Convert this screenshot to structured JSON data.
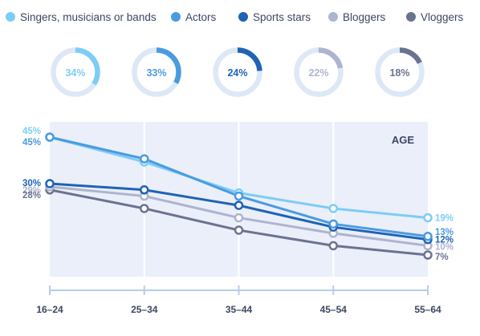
{
  "colors": {
    "singers": "#7ccdf5",
    "actors": "#4a9be0",
    "sports": "#1f63b5",
    "bloggers": "#aeb4cf",
    "vloggers": "#6b7390",
    "ring_track": "#dde8f6",
    "plot_bg": "#eaeffa",
    "axis": "#b9cce8",
    "text_dark": "#3b4760"
  },
  "legend": [
    {
      "label": "Singers, musicians or bands",
      "color_key": "singers"
    },
    {
      "label": "Actors",
      "color_key": "actors"
    },
    {
      "label": "Sports stars",
      "color_key": "sports"
    },
    {
      "label": "Bloggers",
      "color_key": "bloggers"
    },
    {
      "label": "Vloggers",
      "color_key": "vloggers"
    }
  ],
  "donuts": [
    {
      "value": 34,
      "label": "34%",
      "color_key": "singers"
    },
    {
      "value": 33,
      "label": "33%",
      "color_key": "actors"
    },
    {
      "value": 24,
      "label": "24%",
      "color_key": "sports"
    },
    {
      "value": 22,
      "label": "22%",
      "color_key": "bloggers"
    },
    {
      "value": 18,
      "label": "18%",
      "color_key": "vloggers"
    }
  ],
  "chart_data": {
    "type": "line",
    "title": "AGE",
    "categories": [
      "16–24",
      "25–34",
      "35–44",
      "45–54",
      "55–64"
    ],
    "ylim": [
      0,
      50
    ],
    "grid": true,
    "series": [
      {
        "name": "Singers, musicians or bands",
        "color_key": "singers",
        "values": [
          45,
          37,
          27,
          22,
          19
        ],
        "start_label": "45%",
        "end_label": "19%"
      },
      {
        "name": "Actors",
        "color_key": "actors",
        "values": [
          45,
          38,
          26,
          17,
          13
        ],
        "start_label": "45%",
        "end_label": "13%"
      },
      {
        "name": "Sports stars",
        "color_key": "sports",
        "values": [
          30,
          28,
          23,
          16,
          12
        ],
        "start_label": "30%",
        "end_label": "12%"
      },
      {
        "name": "Bloggers",
        "color_key": "bloggers",
        "values": [
          29,
          26,
          19,
          14,
          10
        ],
        "start_label": "29%",
        "end_label": "10%"
      },
      {
        "name": "Vloggers",
        "color_key": "vloggers",
        "values": [
          28,
          22,
          15,
          10,
          7
        ],
        "start_label": "28%",
        "end_label": "7%"
      }
    ]
  }
}
